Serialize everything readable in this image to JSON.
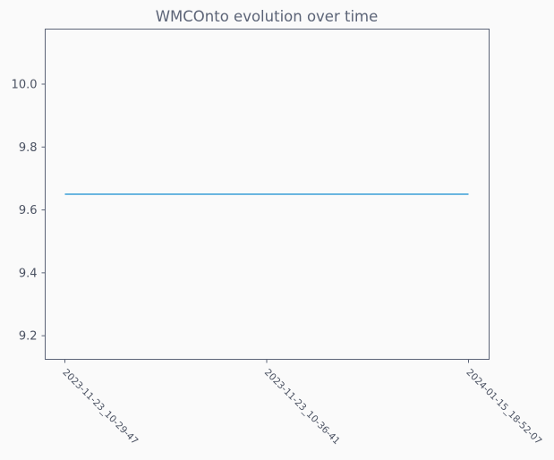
{
  "chart_data": {
    "type": "line",
    "title": "WMCOnto evolution over time",
    "xlabel": "",
    "ylabel": "",
    "categories": [
      "2023-11-23_10-29-47",
      "2023-11-23_10-36-41",
      "2024-01-15_18-52-07"
    ],
    "series": [
      {
        "values": [
          9.65,
          9.65,
          9.65
        ]
      }
    ],
    "yticks": [
      "9.2",
      "9.4",
      "9.6",
      "9.8",
      "10.0"
    ],
    "ylim": [
      9.125,
      10.175
    ],
    "grid": false,
    "legend": "none",
    "colors": {
      "line": "#3a9fd8",
      "axes": "#5c6477",
      "plot_background": "#fafafa",
      "page_background": "#fafafa"
    }
  }
}
